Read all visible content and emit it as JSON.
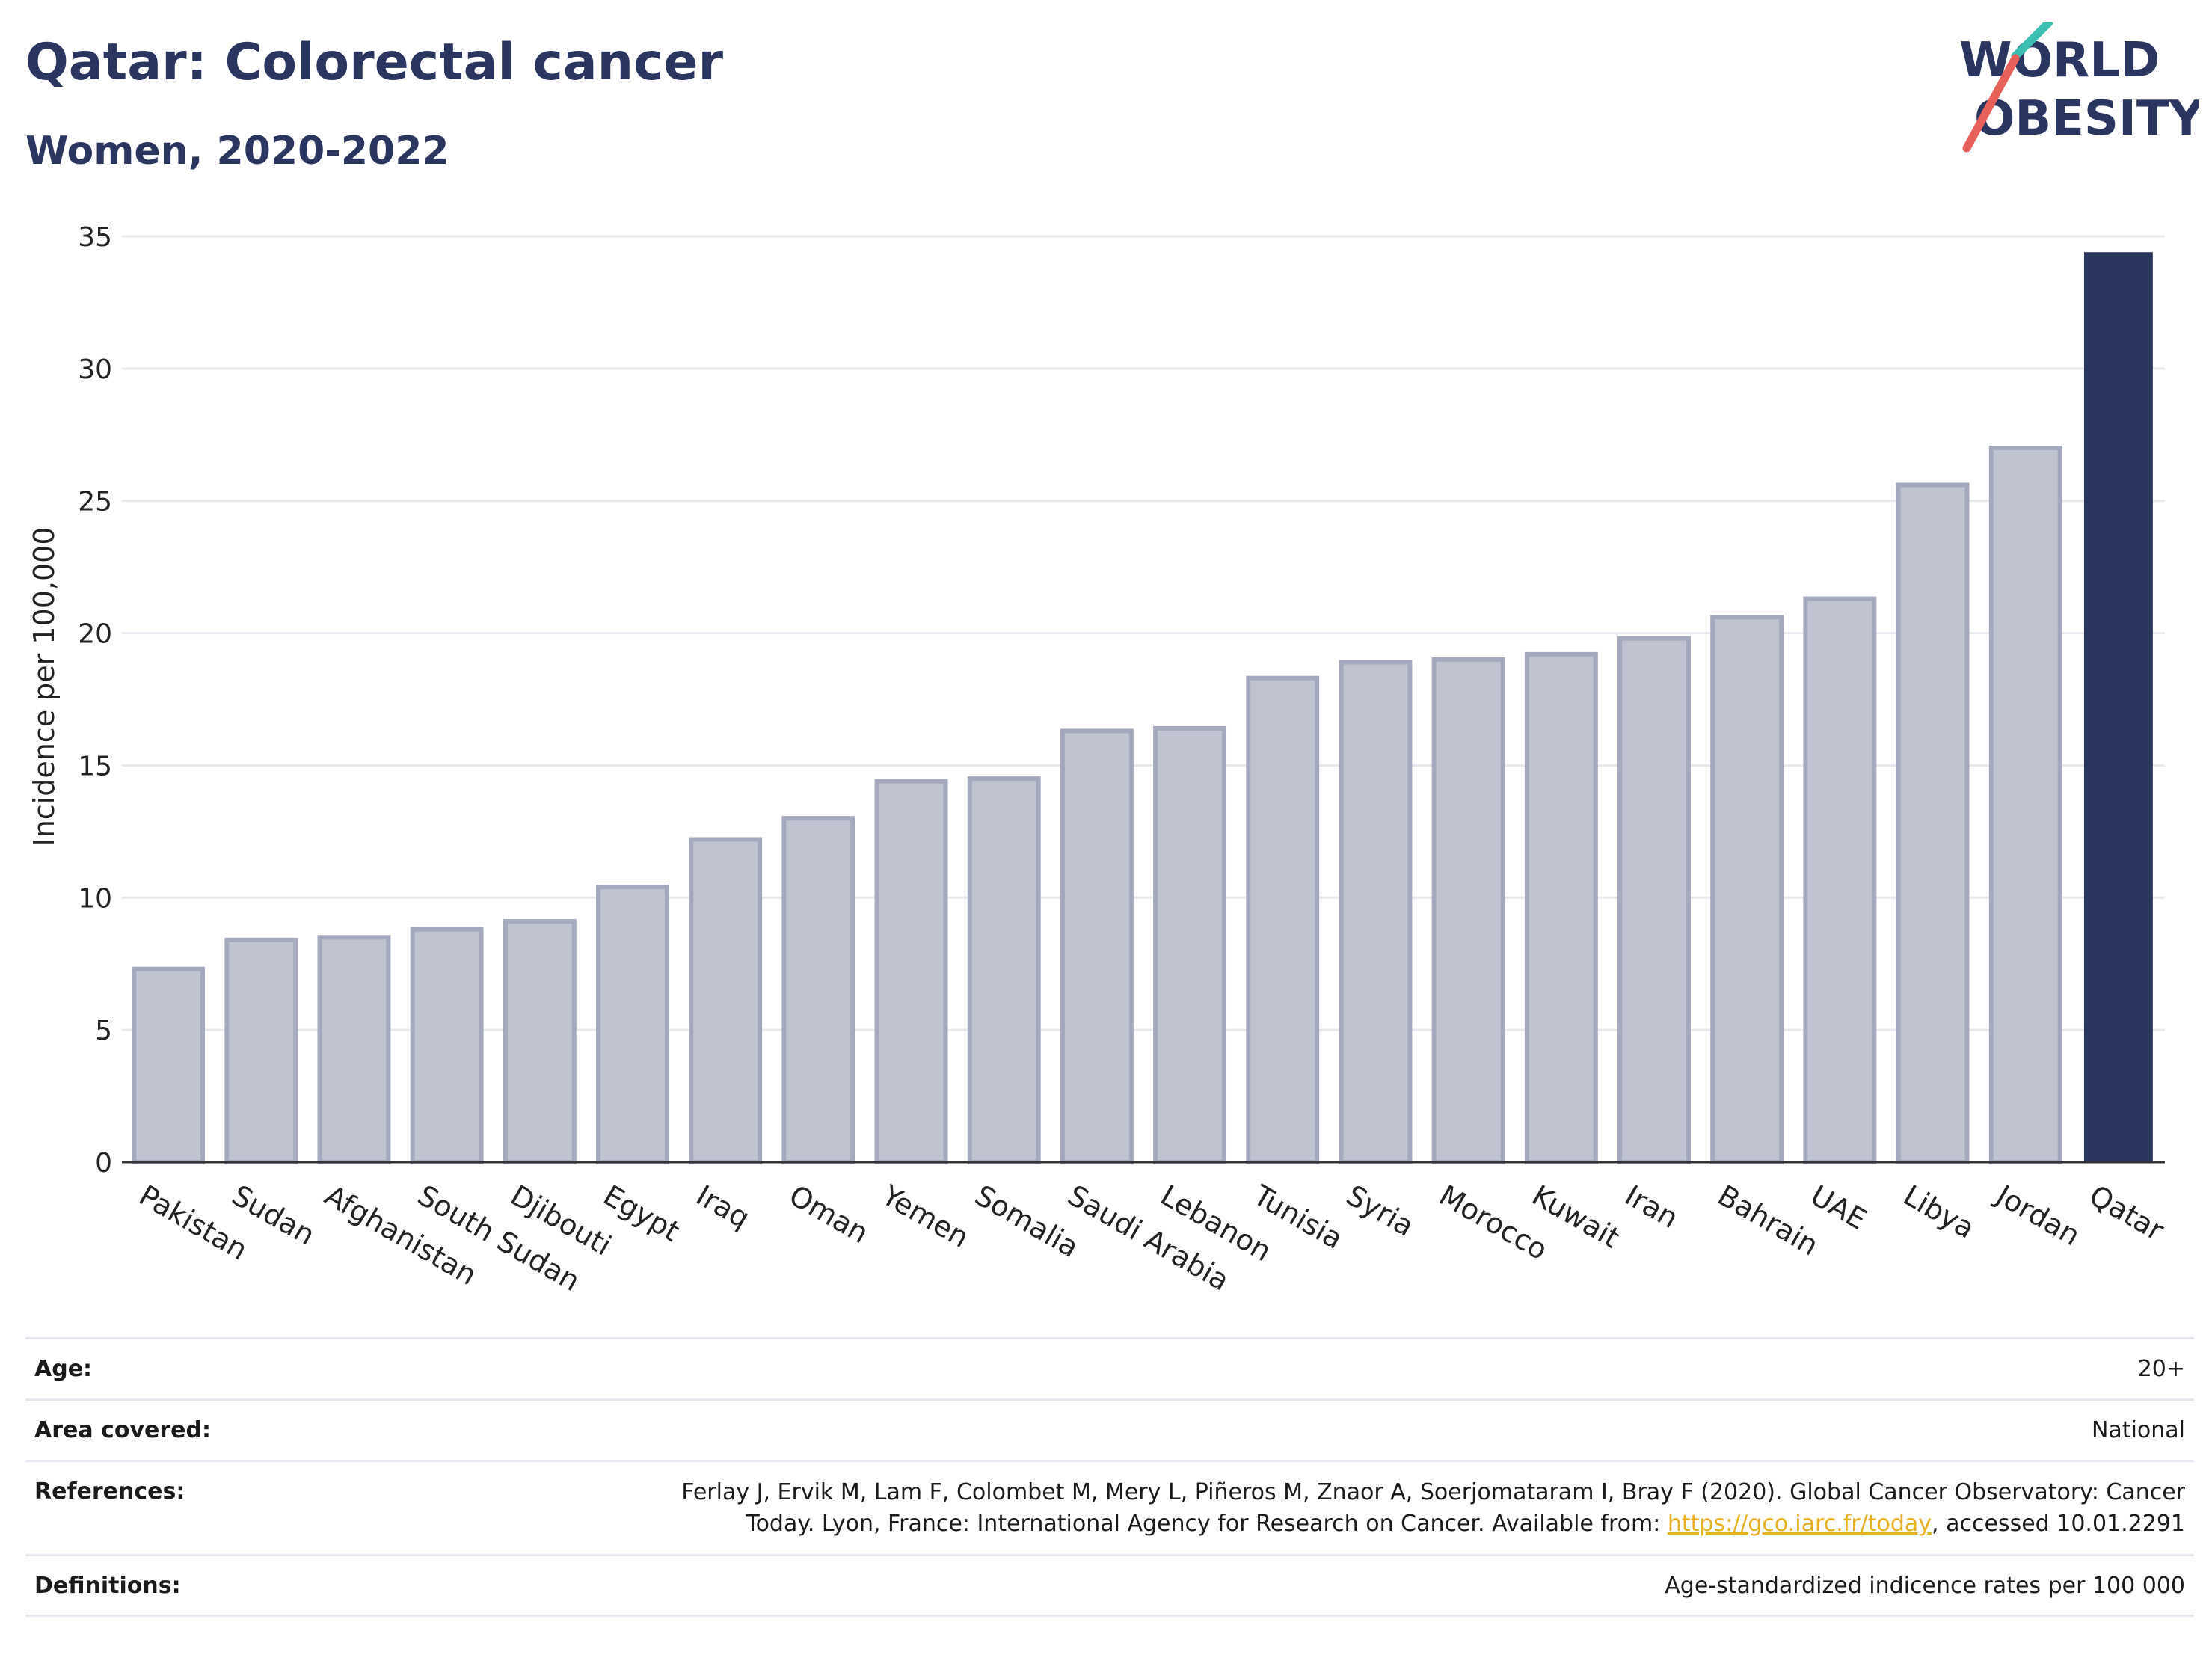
{
  "header": {
    "title": "Qatar: Colorectal cancer",
    "subtitle": "Women, 2020-2022"
  },
  "logo": {
    "line1": "WORLD",
    "line2": "OBESITY",
    "brand_color": "#2a3560",
    "accent_teal": "#3bbfb3",
    "accent_red": "#e8605a"
  },
  "colors": {
    "highlight_bar": "#2a3560",
    "other_bar_fill": "#c0c3d0",
    "other_bar_stroke": "#a4a9bd",
    "link": "#e8b020"
  },
  "chart_data": {
    "type": "bar",
    "ylabel": "Incidence per 100,000",
    "xlabel": "",
    "ylim": [
      0,
      35
    ],
    "yticks": [
      0,
      5,
      10,
      15,
      20,
      25,
      30,
      35
    ],
    "grid": true,
    "highlight": "Qatar",
    "categories": [
      "Pakistan",
      "Sudan",
      "Afghanistan",
      "South Sudan",
      "Djibouti",
      "Egypt",
      "Iraq",
      "Oman",
      "Yemen",
      "Somalia",
      "Saudi Arabia",
      "Lebanon",
      "Tunisia",
      "Syria",
      "Morocco",
      "Kuwait",
      "Iran",
      "Bahrain",
      "UAE",
      "Libya",
      "Jordan",
      "Qatar"
    ],
    "values": [
      7.3,
      8.4,
      8.5,
      8.8,
      9.1,
      10.4,
      12.2,
      13.0,
      14.4,
      14.5,
      16.3,
      16.4,
      18.3,
      18.9,
      19.0,
      19.2,
      19.8,
      20.6,
      21.3,
      25.6,
      27.0,
      34.4
    ]
  },
  "info": {
    "age": {
      "label": "Age:",
      "value": "20+"
    },
    "area": {
      "label": "Area covered:",
      "value": "National"
    },
    "references": {
      "label": "References:",
      "line1": "Ferlay J, Ervik M, Lam F, Colombet M, Mery L, Piñeros M, Znaor A, Soerjomataram I, Bray F (2020). Global Cancer Observatory: Cancer",
      "line2_pre": "Today. Lyon, France: International Agency for Research on Cancer. Available from: ",
      "link": "https://gco.iarc.fr/today",
      "line2_post": ", accessed 10.01.2291"
    },
    "definitions": {
      "label": "Definitions:",
      "value": "Age-standardized indicence rates per 100 000"
    }
  }
}
